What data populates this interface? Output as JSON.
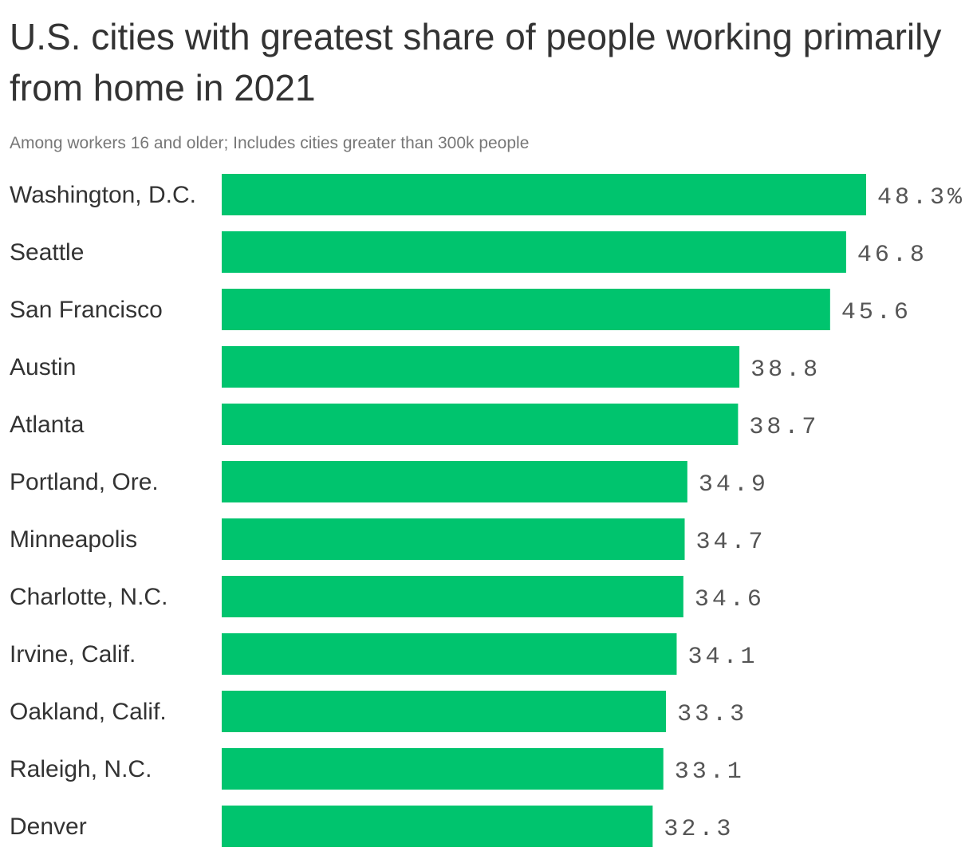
{
  "chart_data": {
    "type": "bar",
    "orientation": "horizontal",
    "title": "U.S. cities with greatest share of people working primarily from home in 2021",
    "subtitle": "Among workers 16 and older; Includes cities greater than 300k people",
    "categories": [
      "Washington, D.C.",
      "Seattle",
      "San Francisco",
      "Austin",
      "Atlanta",
      "Portland, Ore.",
      "Minneapolis",
      "Charlotte, N.C.",
      "Irvine, Calif.",
      "Oakland, Calif.",
      "Raleigh, N.C.",
      "Denver"
    ],
    "values": [
      48.3,
      46.8,
      45.6,
      38.8,
      38.7,
      34.9,
      34.7,
      34.6,
      34.1,
      33.3,
      33.1,
      32.3
    ],
    "value_labels": [
      "48.3%",
      "46.8",
      "45.6",
      "38.8",
      "38.7",
      "34.9",
      "34.7",
      "34.6",
      "34.1",
      "33.3",
      "33.1",
      "32.3"
    ],
    "bar_color": "#00c46e",
    "xlabel": "",
    "ylabel": "",
    "xlim": [
      0,
      48.3
    ],
    "grid": false,
    "legend": "none"
  }
}
